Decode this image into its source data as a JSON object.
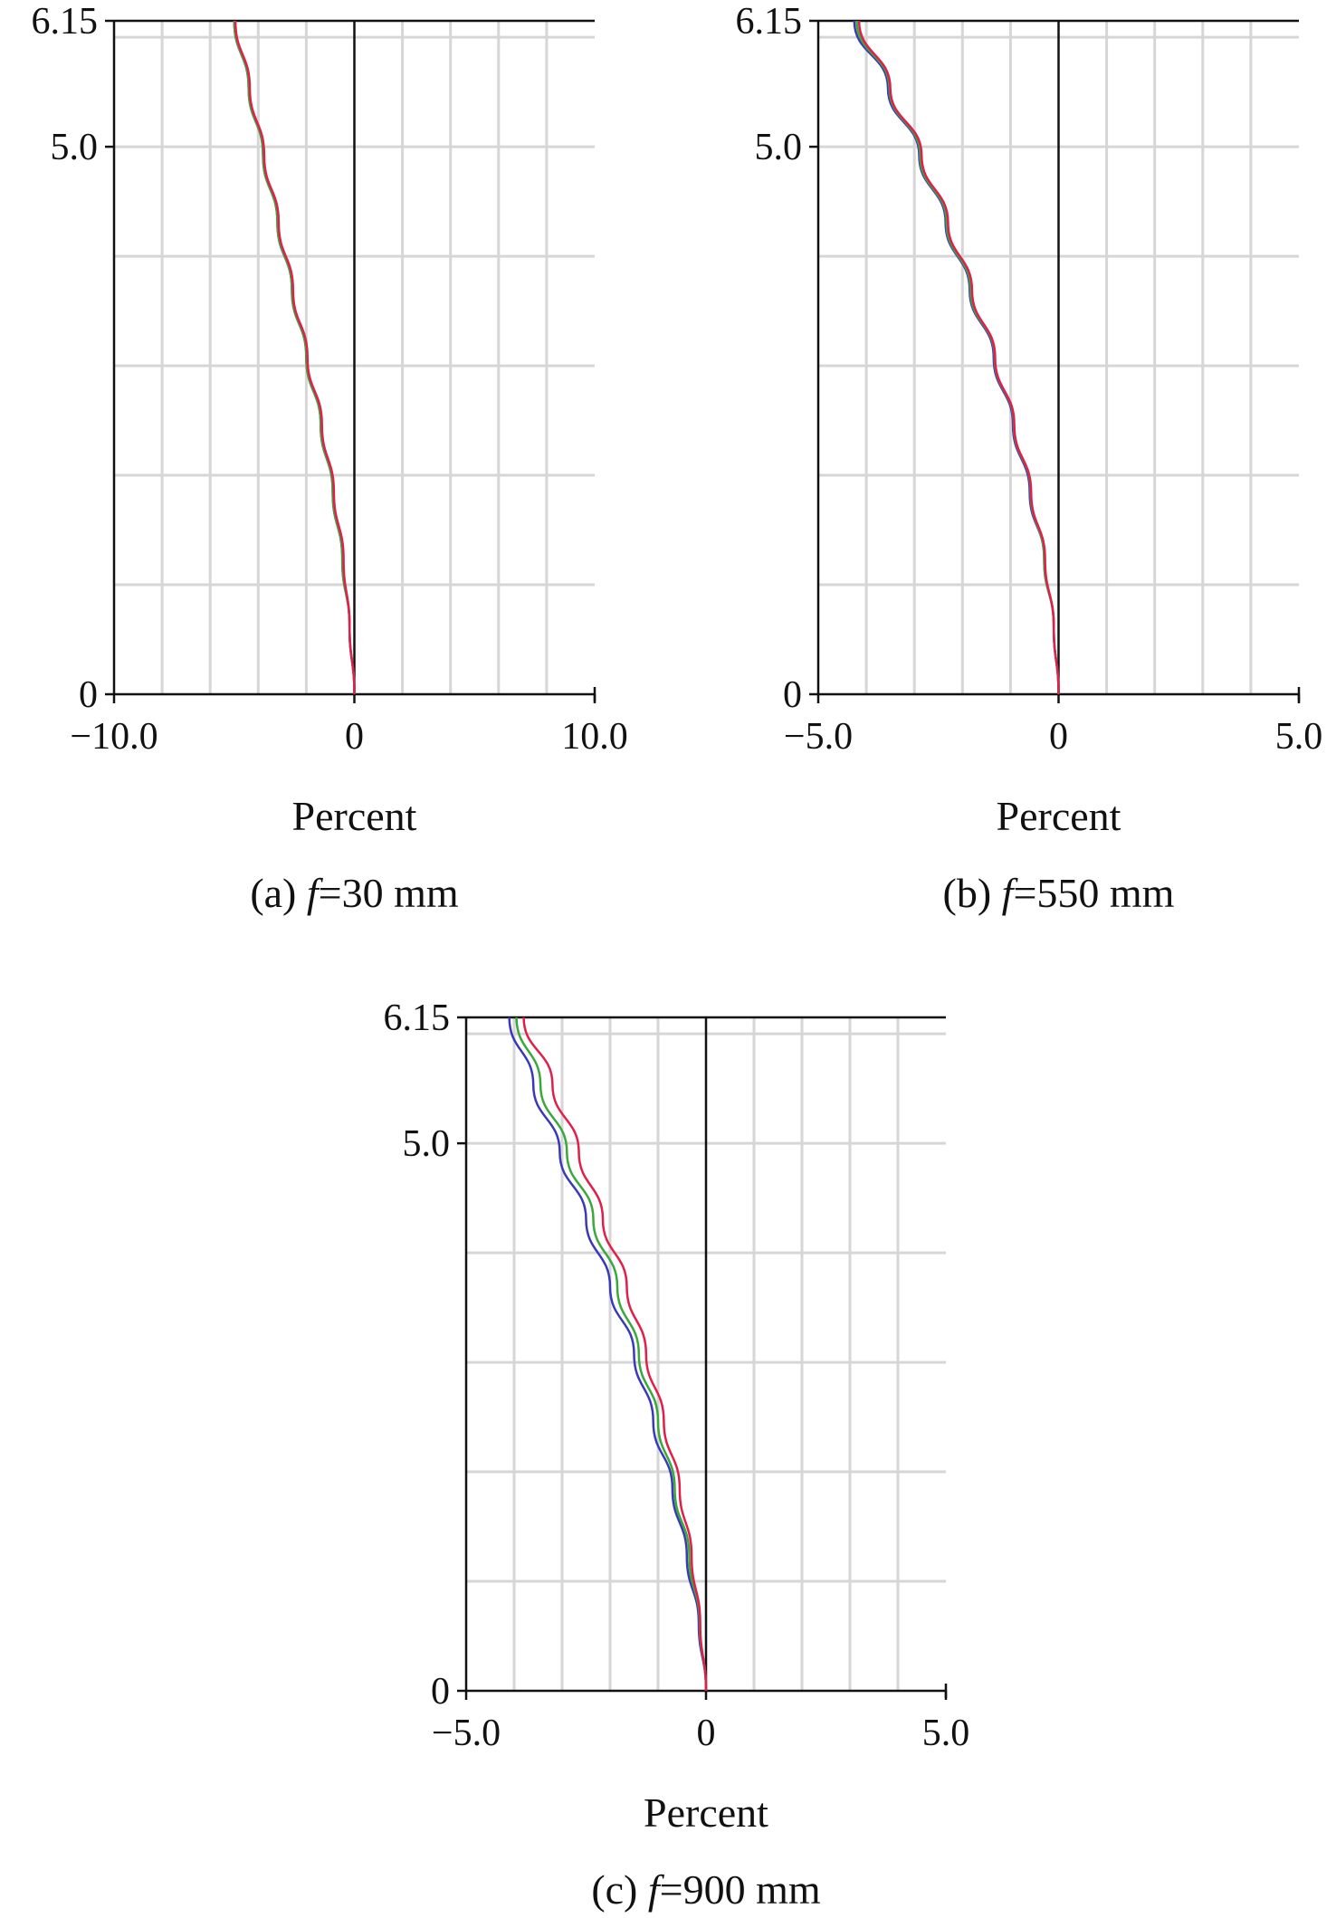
{
  "chart_data": [
    {
      "type": "line",
      "xlabel": "Percent",
      "ylabel": "",
      "caption": {
        "prefix": "(a) ",
        "italic": "f",
        "suffix": "=30 mm"
      },
      "xlim": [
        -10.0,
        10.0
      ],
      "ylim": [
        0,
        6.15
      ],
      "x_ticks": [
        {
          "value": -10.0,
          "label": "−10.0"
        },
        {
          "value": 0,
          "label": "0"
        },
        {
          "value": 10.0,
          "label": "10.0"
        }
      ],
      "y_ticks": [
        {
          "value": 0,
          "label": "0"
        },
        {
          "value": 5.0,
          "label": "5.0"
        },
        {
          "value": 6.15,
          "label": "6.15"
        }
      ],
      "x_grid_step": 2.0,
      "y_grid": [
        1.0,
        2.0,
        3.0,
        4.0,
        5.0,
        6.0
      ],
      "grid": true,
      "series": [
        {
          "color": "#3a3ab8",
          "x": [
            0,
            -0.2,
            -0.5,
            -0.9,
            -1.4,
            -2.0,
            -2.6,
            -3.2,
            -3.8,
            -4.4,
            -5.0
          ],
          "y": [
            0,
            0.615,
            1.23,
            1.845,
            2.46,
            3.075,
            3.69,
            4.305,
            4.92,
            5.535,
            6.15
          ]
        },
        {
          "color": "#3aa83a",
          "x": [
            0,
            -0.2,
            -0.5,
            -0.9,
            -1.4,
            -2.0,
            -2.6,
            -3.2,
            -3.8,
            -4.4,
            -5.0
          ],
          "y": [
            0,
            0.615,
            1.23,
            1.845,
            2.46,
            3.075,
            3.69,
            4.305,
            4.92,
            5.535,
            6.15
          ]
        },
        {
          "color": "#e0204a",
          "x": [
            0,
            -0.2,
            -0.45,
            -0.85,
            -1.35,
            -1.95,
            -2.55,
            -3.15,
            -3.75,
            -4.35,
            -4.95
          ],
          "y": [
            0,
            0.615,
            1.23,
            1.845,
            2.46,
            3.075,
            3.69,
            4.305,
            4.92,
            5.535,
            6.15
          ]
        }
      ]
    },
    {
      "type": "line",
      "xlabel": "Percent",
      "ylabel": "",
      "caption": {
        "prefix": "(b) ",
        "italic": "f",
        "suffix": "=550 mm"
      },
      "xlim": [
        -5.0,
        5.0
      ],
      "ylim": [
        0,
        6.15
      ],
      "x_ticks": [
        {
          "value": -5.0,
          "label": "−5.0"
        },
        {
          "value": 0,
          "label": "0"
        },
        {
          "value": 5.0,
          "label": "5.0"
        }
      ],
      "y_ticks": [
        {
          "value": 0,
          "label": "0"
        },
        {
          "value": 5.0,
          "label": "5.0"
        },
        {
          "value": 6.15,
          "label": "6.15"
        }
      ],
      "x_grid_step": 1.0,
      "y_grid": [
        1.0,
        2.0,
        3.0,
        4.0,
        5.0,
        6.0
      ],
      "grid": true,
      "series": [
        {
          "color": "#3a3ab8",
          "x": [
            0,
            -0.1,
            -0.3,
            -0.6,
            -0.95,
            -1.35,
            -1.85,
            -2.35,
            -2.9,
            -3.55,
            -4.25
          ],
          "y": [
            0,
            0.615,
            1.23,
            1.845,
            2.46,
            3.075,
            3.69,
            4.305,
            4.92,
            5.535,
            6.15
          ]
        },
        {
          "color": "#3aa83a",
          "x": [
            0,
            -0.1,
            -0.3,
            -0.58,
            -0.93,
            -1.33,
            -1.83,
            -2.33,
            -2.88,
            -3.52,
            -4.2
          ],
          "y": [
            0,
            0.615,
            1.23,
            1.845,
            2.46,
            3.075,
            3.69,
            4.305,
            4.92,
            5.535,
            6.15
          ]
        },
        {
          "color": "#e0204a",
          "x": [
            0,
            -0.1,
            -0.28,
            -0.57,
            -0.92,
            -1.32,
            -1.8,
            -2.3,
            -2.85,
            -3.5,
            -4.15
          ],
          "y": [
            0,
            0.615,
            1.23,
            1.845,
            2.46,
            3.075,
            3.69,
            4.305,
            4.92,
            5.535,
            6.15
          ]
        }
      ]
    },
    {
      "type": "line",
      "xlabel": "Percent",
      "ylabel": "",
      "caption": {
        "prefix": "(c) ",
        "italic": "f",
        "suffix": "=900 mm"
      },
      "xlim": [
        -5.0,
        5.0
      ],
      "ylim": [
        0,
        6.15
      ],
      "x_ticks": [
        {
          "value": -5.0,
          "label": "−5.0"
        },
        {
          "value": 0,
          "label": "0"
        },
        {
          "value": 5.0,
          "label": "5.0"
        }
      ],
      "y_ticks": [
        {
          "value": 0,
          "label": "0"
        },
        {
          "value": 5.0,
          "label": "5.0"
        },
        {
          "value": 6.15,
          "label": "6.15"
        }
      ],
      "x_grid_step": 1.0,
      "y_grid": [
        1.0,
        2.0,
        3.0,
        4.0,
        5.0,
        6.0
      ],
      "grid": true,
      "series": [
        {
          "color": "#3a3ab8",
          "x": [
            0,
            -0.15,
            -0.4,
            -0.7,
            -1.1,
            -1.5,
            -2.0,
            -2.5,
            -3.05,
            -3.6,
            -4.1
          ],
          "y": [
            0,
            0.615,
            1.23,
            1.845,
            2.46,
            3.075,
            3.69,
            4.305,
            4.92,
            5.535,
            6.15
          ]
        },
        {
          "color": "#3aa83a",
          "x": [
            0,
            -0.13,
            -0.35,
            -0.65,
            -1.0,
            -1.4,
            -1.85,
            -2.35,
            -2.9,
            -3.45,
            -3.95
          ],
          "y": [
            0,
            0.615,
            1.23,
            1.845,
            2.46,
            3.075,
            3.69,
            4.305,
            4.92,
            5.535,
            6.15
          ]
        },
        {
          "color": "#e0204a",
          "x": [
            0,
            -0.12,
            -0.3,
            -0.55,
            -0.88,
            -1.25,
            -1.65,
            -2.15,
            -2.65,
            -3.2,
            -3.8
          ],
          "y": [
            0,
            0.615,
            1.23,
            1.845,
            2.46,
            3.075,
            3.69,
            4.305,
            4.92,
            5.535,
            6.15
          ]
        }
      ]
    }
  ]
}
